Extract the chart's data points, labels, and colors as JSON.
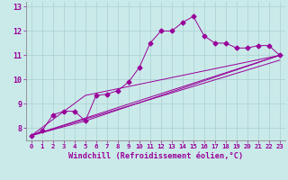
{
  "xlabel": "Windchill (Refroidissement éolien,°C)",
  "bg_color": "#caeaea",
  "line_color": "#990099",
  "xlim": [
    -0.5,
    23.5
  ],
  "ylim": [
    7.5,
    13.2
  ],
  "xticks": [
    0,
    1,
    2,
    3,
    4,
    5,
    6,
    7,
    8,
    9,
    10,
    11,
    12,
    13,
    14,
    15,
    16,
    17,
    18,
    19,
    20,
    21,
    22,
    23
  ],
  "yticks": [
    8,
    9,
    10,
    11,
    12,
    13
  ],
  "main_x": [
    0,
    1,
    2,
    3,
    4,
    5,
    6,
    7,
    8,
    9,
    10,
    11,
    12,
    13,
    14,
    15,
    16,
    17,
    18,
    19,
    20,
    21,
    22,
    23
  ],
  "main_y": [
    7.7,
    7.9,
    8.55,
    8.7,
    8.7,
    8.3,
    9.35,
    9.4,
    9.55,
    9.9,
    10.5,
    11.5,
    12.0,
    12.0,
    12.35,
    12.6,
    11.8,
    11.5,
    11.5,
    11.3,
    11.3,
    11.4,
    11.4,
    11.0
  ],
  "straight_lines": [
    {
      "x": [
        0,
        23
      ],
      "y": [
        7.7,
        11.0
      ]
    },
    {
      "x": [
        0,
        5,
        23
      ],
      "y": [
        7.7,
        9.35,
        11.0
      ]
    },
    {
      "x": [
        0,
        5,
        23
      ],
      "y": [
        7.7,
        8.3,
        11.0
      ]
    },
    {
      "x": [
        0,
        23
      ],
      "y": [
        7.7,
        10.8
      ]
    }
  ]
}
